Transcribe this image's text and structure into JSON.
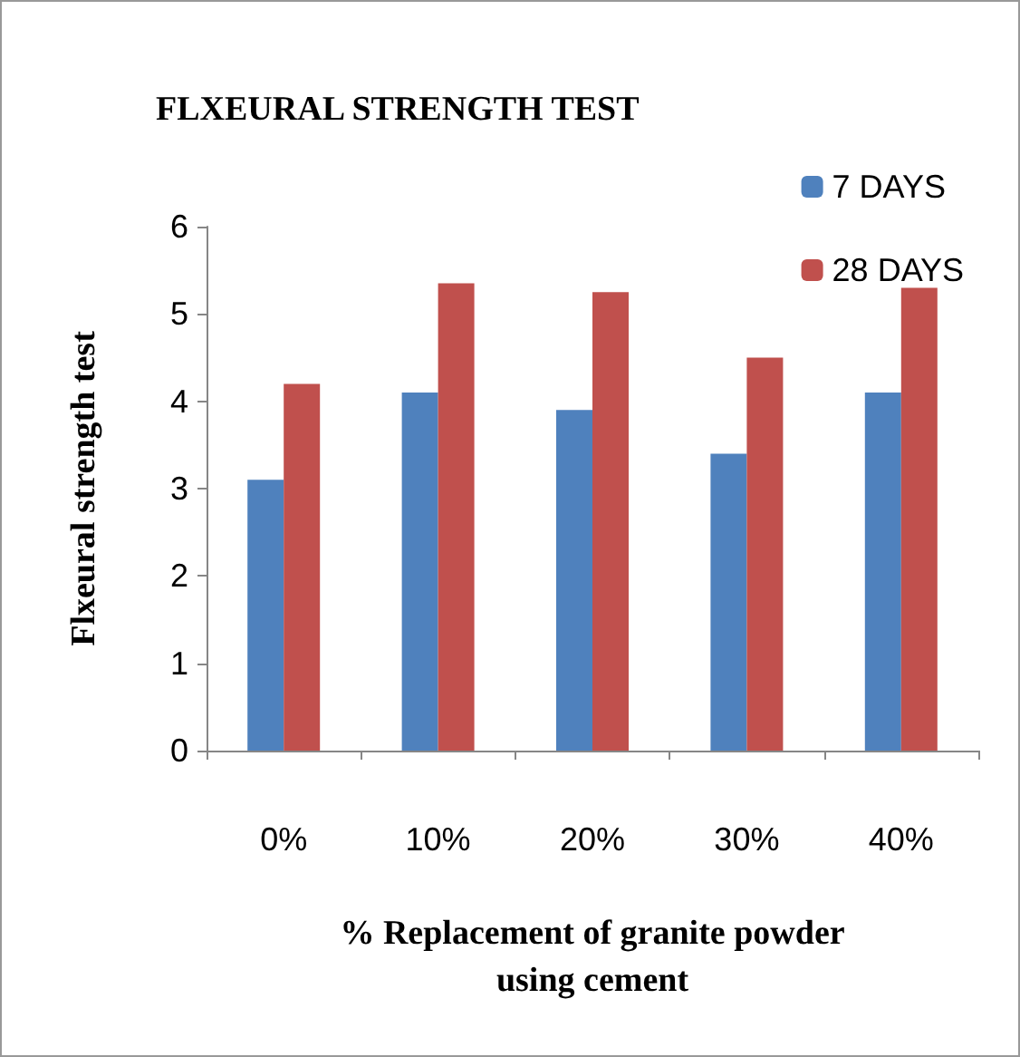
{
  "chart_data": {
    "type": "bar",
    "title": "FLXEURAL STRENGTH TEST",
    "xlabel": "% Replacement of granite powder\nusing cement",
    "ylabel": "Flxeural strength test",
    "categories": [
      "0%",
      "10%",
      "20%",
      "30%",
      "40%"
    ],
    "series": [
      {
        "name": "7 DAYS",
        "color": "#4f81bd",
        "values": [
          3.1,
          4.1,
          3.9,
          3.4,
          4.1
        ]
      },
      {
        "name": "28 DAYS",
        "color": "#c0504d",
        "values": [
          4.2,
          5.35,
          5.25,
          4.5,
          5.3
        ]
      }
    ],
    "ylim": [
      0,
      6
    ],
    "yticks": [
      0,
      1,
      2,
      3,
      4,
      5,
      6
    ],
    "grid": false,
    "legend": "top right"
  }
}
